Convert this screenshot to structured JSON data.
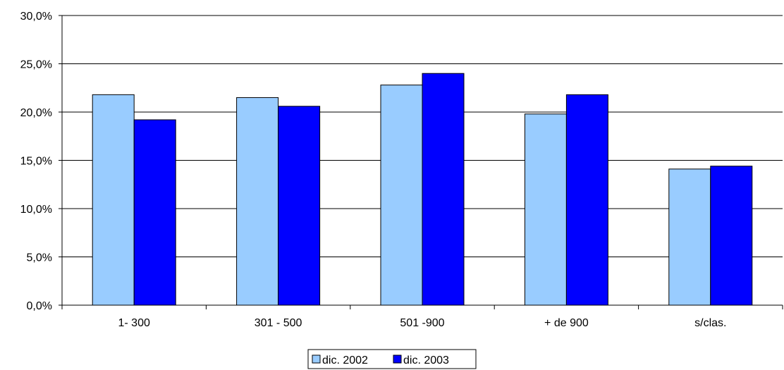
{
  "chart_data": {
    "type": "bar",
    "categories": [
      "1- 300",
      "301 - 500",
      "501 -900",
      "+ de 900",
      "s/clas."
    ],
    "series": [
      {
        "name": "dic. 2002",
        "values": [
          21.8,
          21.5,
          22.8,
          19.8,
          14.1
        ],
        "color": "#99ccff"
      },
      {
        "name": "dic. 2003",
        "values": [
          19.2,
          20.6,
          24.0,
          21.8,
          14.4
        ],
        "color": "#0000ff"
      }
    ],
    "ylim": [
      0,
      30
    ],
    "yticks": [
      "0,0%",
      "5,0%",
      "10,0%",
      "15,0%",
      "20,0%",
      "25,0%",
      "30,0%"
    ],
    "grid": true,
    "legend_position": "bottom",
    "title": "",
    "xlabel": "",
    "ylabel": ""
  }
}
